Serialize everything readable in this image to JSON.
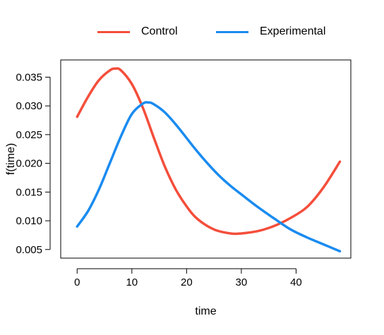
{
  "chart_data": {
    "type": "line",
    "title": "",
    "xlabel": "time",
    "ylabel": "f(time)",
    "xlim": [
      -3,
      50
    ],
    "ylim": [
      0.0035,
      0.038
    ],
    "x_ticks": [
      0,
      10,
      20,
      30,
      40
    ],
    "x_tick_labels": [
      "0",
      "10",
      "20",
      "30",
      "40"
    ],
    "y_ticks": [
      0.005,
      0.01,
      0.015,
      0.02,
      0.025,
      0.03,
      0.035
    ],
    "y_tick_labels": [
      "0.005",
      "0.010",
      "0.015",
      "0.020",
      "0.025",
      "0.030",
      "0.035"
    ],
    "grid": false,
    "legend_position": "top-center",
    "series": [
      {
        "name": "Control",
        "color": "#F44E3B",
        "x": [
          0,
          2,
          4,
          6,
          7,
          8,
          10,
          12,
          14,
          16,
          18,
          20,
          22,
          25,
          28,
          30,
          33,
          36,
          39,
          42,
          45,
          48
        ],
        "y": [
          0.0281,
          0.0316,
          0.0345,
          0.0362,
          0.0365,
          0.0362,
          0.0338,
          0.0297,
          0.0245,
          0.0195,
          0.0155,
          0.0125,
          0.0103,
          0.0085,
          0.0078,
          0.0078,
          0.0082,
          0.0091,
          0.0105,
          0.0124,
          0.0158,
          0.0203
        ]
      },
      {
        "name": "Experimental",
        "color": "#1A8BF0",
        "x": [
          0,
          2,
          4,
          6,
          8,
          10,
          12,
          13,
          14,
          16,
          18,
          20,
          22,
          24,
          26,
          28,
          30,
          33,
          36,
          39,
          42,
          45,
          48
        ],
        "y": [
          0.009,
          0.0117,
          0.0155,
          0.0201,
          0.0247,
          0.0286,
          0.0304,
          0.0306,
          0.0303,
          0.0289,
          0.0268,
          0.0244,
          0.022,
          0.0198,
          0.0178,
          0.0161,
          0.0146,
          0.0124,
          0.0104,
          0.0085,
          0.0071,
          0.0059,
          0.0047
        ]
      }
    ]
  }
}
